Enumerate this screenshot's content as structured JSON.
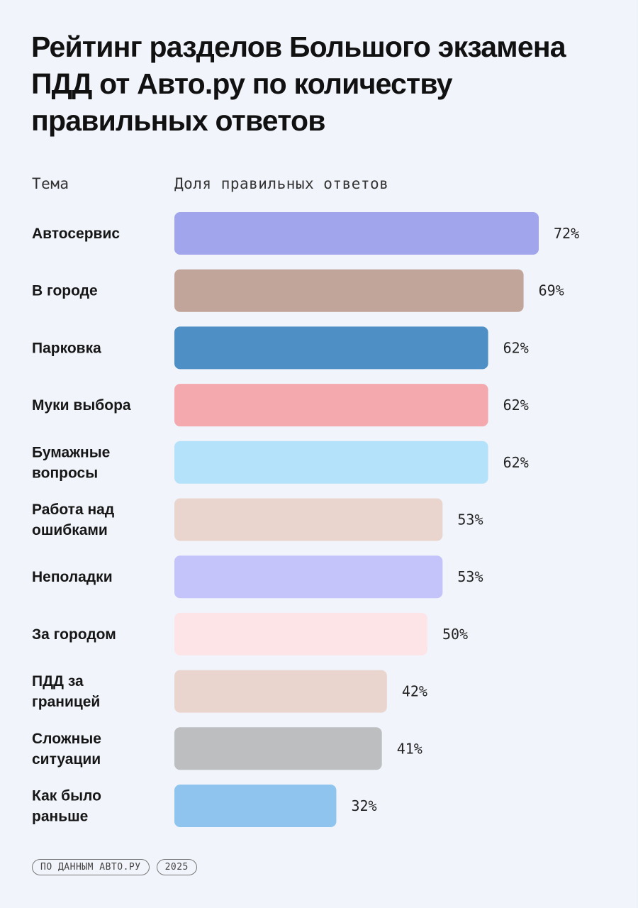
{
  "title": "Рейтинг разделов Большого экзамена ПДД от Авто.ру по количеству правильных ответов",
  "headers": {
    "topic": "Тема",
    "share": "Доля правильных ответов"
  },
  "footer": {
    "source": "ПО ДАННЫМ АВТО.РУ",
    "year": "2025"
  },
  "chart_data": {
    "type": "bar",
    "orientation": "horizontal",
    "title": "Рейтинг разделов Большого экзамена ПДД от Авто.ру по количеству правильных ответов",
    "xlabel": "Доля правильных ответов",
    "ylabel": "Тема",
    "xlim": [
      0,
      100
    ],
    "unit": "%",
    "categories": [
      [
        "Автосервис"
      ],
      [
        "В городе"
      ],
      [
        "Парковка"
      ],
      [
        "Муки выбора"
      ],
      [
        "Бумажные",
        "вопросы"
      ],
      [
        "Работа над",
        "ошибками"
      ],
      [
        "Неполадки"
      ],
      [
        "За городом"
      ],
      [
        "ПДД за",
        "границей"
      ],
      [
        "Сложные",
        "ситуации"
      ],
      [
        "Как было",
        "раньше"
      ]
    ],
    "values": [
      72,
      69,
      62,
      62,
      62,
      53,
      53,
      50,
      42,
      41,
      32
    ],
    "value_labels": [
      "72%",
      "69%",
      "62%",
      "62%",
      "62%",
      "53%",
      "53%",
      "50%",
      "42%",
      "41%",
      "32%"
    ],
    "colors": [
      "#a0a5ec",
      "#c2a59a",
      "#4e8fc6",
      "#f4a9ae",
      "#b5e2fb",
      "#ead5ce",
      "#c4c4fb",
      "#fde4e7",
      "#ead5ce",
      "#bcbec0",
      "#8fc4ee"
    ],
    "grid": false,
    "legend": "none"
  }
}
